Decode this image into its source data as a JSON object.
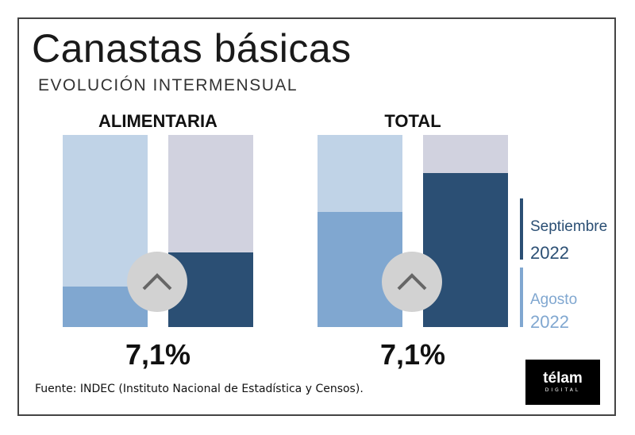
{
  "title": "Canastas básicas",
  "subtitle": "EVOLUCIÓN INTERMENSUAL",
  "chart_data": {
    "type": "bar",
    "groups": [
      {
        "name": "ALIMENTARIA",
        "value_label": "7,1%",
        "series": [
          {
            "legend": "Agosto 2022",
            "fill_fraction": 0.21
          },
          {
            "legend": "Septiembre 2022",
            "fill_fraction": 0.39
          }
        ]
      },
      {
        "name": "TOTAL",
        "value_label": "7,1%",
        "series": [
          {
            "legend": "Agosto 2022",
            "fill_fraction": 0.6
          },
          {
            "legend": "Septiembre 2022",
            "fill_fraction": 0.8
          }
        ]
      }
    ],
    "colors": {
      "agosto": "#80a7d0",
      "agosto_bg": "#c0d3e7",
      "septiembre": "#2b4f74",
      "septiembre_bg": "#d1d2df"
    },
    "indicator_icon": "chevron-up-icon"
  },
  "legend": [
    {
      "month": "Septiembre",
      "year": "2022",
      "color": "#2b4f74"
    },
    {
      "month": "Agosto",
      "year": "2022",
      "color": "#80a7d0"
    }
  ],
  "source": "Fuente: INDEC (Instituto Nacional de Estadística y Censos).",
  "logo": {
    "name": "télam",
    "sub": "DIGITAL"
  }
}
